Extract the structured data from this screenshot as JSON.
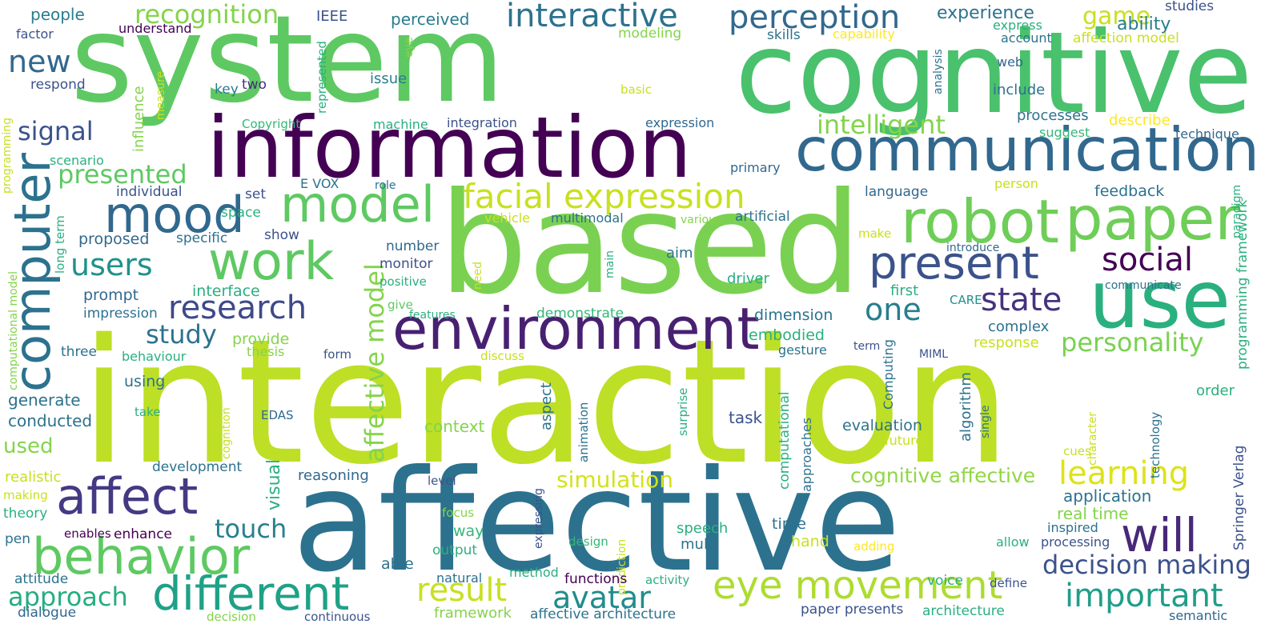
{
  "palette": {
    "dark_purple": "#440154",
    "indigo": "#472d7b",
    "slate_blue": "#3b528b",
    "steel_blue": "#2c728e",
    "teal": "#21918c",
    "sea_green": "#28ae80",
    "green": "#5ec962",
    "light_green": "#84d44b",
    "lime": "#addc30",
    "yellow_green": "#c8e020",
    "yellow": "#fde725"
  },
  "words": [
    {
      "text": "interaction",
      "color": "#bddf26"
    },
    {
      "text": "system",
      "color": "#5ec962"
    },
    {
      "text": "cognitive",
      "color": "#4ac16d"
    },
    {
      "text": "based",
      "color": "#7ad151"
    },
    {
      "text": "affective",
      "color": "#2c728e"
    },
    {
      "text": "information",
      "color": "#440154"
    },
    {
      "text": "communication",
      "color": "#31688e"
    },
    {
      "text": "environment",
      "color": "#482071"
    },
    {
      "text": "robot",
      "color": "#6ece58"
    },
    {
      "text": "paper",
      "color": "#6ece58"
    },
    {
      "text": "use",
      "color": "#2ab07f"
    },
    {
      "text": "computer",
      "color": "#2c728e"
    },
    {
      "text": "model",
      "color": "#5ec962"
    },
    {
      "text": "work",
      "color": "#5ec962"
    },
    {
      "text": "mood",
      "color": "#31688e"
    },
    {
      "text": "behavior",
      "color": "#5ec962"
    },
    {
      "text": "affect",
      "color": "#443a83"
    },
    {
      "text": "different",
      "color": "#1fa187"
    },
    {
      "text": "present",
      "color": "#3b528b"
    },
    {
      "text": "eye movement",
      "color": "#addc30"
    },
    {
      "text": "will",
      "color": "#482878"
    },
    {
      "text": "facial expression",
      "color": "#c8e020"
    },
    {
      "text": "perception",
      "color": "#31688e"
    },
    {
      "text": "interactive",
      "color": "#2c728e"
    },
    {
      "text": "research",
      "color": "#3e4989"
    },
    {
      "text": "social",
      "color": "#440154"
    },
    {
      "text": "state",
      "color": "#46327e"
    },
    {
      "text": "result",
      "color": "#c8e020"
    },
    {
      "text": "avatar",
      "color": "#228c8d"
    },
    {
      "text": "important",
      "color": "#1f9e89"
    },
    {
      "text": "approach",
      "color": "#26ad81"
    },
    {
      "text": "learning",
      "color": "#dde318"
    },
    {
      "text": "personality",
      "color": "#7ad151"
    },
    {
      "text": "intelligent",
      "color": "#84d44b"
    },
    {
      "text": "users",
      "color": "#21918c"
    },
    {
      "text": "new",
      "color": "#31688e"
    },
    {
      "text": "signal",
      "color": "#3b528b"
    },
    {
      "text": "one",
      "color": "#287d8e"
    },
    {
      "text": "study",
      "color": "#2c728e"
    },
    {
      "text": "touch",
      "color": "#27808e"
    },
    {
      "text": "recognition",
      "color": "#84d44b"
    },
    {
      "text": "presented",
      "color": "#5ec962"
    },
    {
      "text": "decision making",
      "color": "#3b528b"
    },
    {
      "text": "affective model",
      "color": "#84d44b"
    },
    {
      "text": "simulation",
      "color": "#d2e21b"
    },
    {
      "text": "cognitive affective",
      "color": "#90d743"
    },
    {
      "text": "game",
      "color": "#c8e020"
    },
    {
      "text": "experience",
      "color": "#2c728e"
    },
    {
      "text": "ability",
      "color": "#287d8e"
    },
    {
      "text": "studies",
      "color": "#3b528b"
    },
    {
      "text": "express",
      "color": "#2ab07f"
    },
    {
      "text": "account",
      "color": "#2c728e"
    },
    {
      "text": "affection model",
      "color": "#c8e020"
    },
    {
      "text": "capability",
      "color": "#fde725"
    },
    {
      "text": "skills",
      "color": "#2c728e"
    },
    {
      "text": "modeling",
      "color": "#84d44b"
    },
    {
      "text": "IEEE",
      "color": "#3b528b"
    },
    {
      "text": "perceived",
      "color": "#287d8e"
    },
    {
      "text": "people",
      "color": "#287d8e"
    },
    {
      "text": "factor",
      "color": "#3b528b"
    },
    {
      "text": "understand",
      "color": "#440154"
    },
    {
      "text": "respond",
      "color": "#3b528b"
    },
    {
      "text": "key",
      "color": "#287d8e"
    },
    {
      "text": "two",
      "color": "#472d7b"
    },
    {
      "text": "issue",
      "color": "#287d8e"
    },
    {
      "text": "basic",
      "color": "#c8e020"
    },
    {
      "text": "web",
      "color": "#31688e"
    },
    {
      "text": "include",
      "color": "#2c728e"
    },
    {
      "text": "processes",
      "color": "#2c728e"
    },
    {
      "text": "describe",
      "color": "#fde725"
    },
    {
      "text": "technique",
      "color": "#31688e"
    },
    {
      "text": "suggest",
      "color": "#35b779"
    },
    {
      "text": "machine",
      "color": "#28ae80"
    },
    {
      "text": "integration",
      "color": "#3b528b"
    },
    {
      "text": "expression",
      "color": "#31688e"
    },
    {
      "text": "Copyright",
      "color": "#35b779"
    },
    {
      "text": "scenario",
      "color": "#2ab07f"
    },
    {
      "text": "programming",
      "color": "#c8e020"
    },
    {
      "text": "influence",
      "color": "#84d44b"
    },
    {
      "text": "measure",
      "color": "#c8e020"
    },
    {
      "text": "represented",
      "color": "#2ab07f"
    },
    {
      "text": "eye",
      "color": "#84d44b"
    },
    {
      "text": "analysis",
      "color": "#2c728e"
    },
    {
      "text": "E VOX",
      "color": "#2c728e"
    },
    {
      "text": "role",
      "color": "#2c728e"
    },
    {
      "text": "primary",
      "color": "#31688e"
    },
    {
      "text": "language",
      "color": "#31688e"
    },
    {
      "text": "person",
      "color": "#c8e020"
    },
    {
      "text": "feedback",
      "color": "#2c728e"
    },
    {
      "text": "individual",
      "color": "#3b528b"
    },
    {
      "text": "set",
      "color": "#3b528b"
    },
    {
      "text": "space",
      "color": "#2ab07f"
    },
    {
      "text": "vehicle",
      "color": "#c8e020"
    },
    {
      "text": "multimodal",
      "color": "#2c728e"
    },
    {
      "text": "various",
      "color": "#84d44b"
    },
    {
      "text": "artificial",
      "color": "#2c728e"
    },
    {
      "text": "paradigm",
      "color": "#2ab07f"
    },
    {
      "text": "programming framework",
      "color": "#2ab07f"
    },
    {
      "text": "long term",
      "color": "#2ab07f"
    },
    {
      "text": "proposed",
      "color": "#31688e"
    },
    {
      "text": "specific",
      "color": "#2c728e"
    },
    {
      "text": "show",
      "color": "#3b528b"
    },
    {
      "text": "make",
      "color": "#c8e020"
    },
    {
      "text": "introduce",
      "color": "#31688e"
    },
    {
      "text": "communicate",
      "color": "#2c728e"
    },
    {
      "text": "computational model",
      "color": "#84d44b"
    },
    {
      "text": "number",
      "color": "#31688e"
    },
    {
      "text": "monitor",
      "color": "#3b528b"
    },
    {
      "text": "positive",
      "color": "#2ab07f"
    },
    {
      "text": "need",
      "color": "#c8e020"
    },
    {
      "text": "main",
      "color": "#2ab07f"
    },
    {
      "text": "aim",
      "color": "#2c728e"
    },
    {
      "text": "driver",
      "color": "#28ae80"
    },
    {
      "text": "first",
      "color": "#2ab07f"
    },
    {
      "text": "CARE",
      "color": "#21918c"
    },
    {
      "text": "prompt",
      "color": "#31688e"
    },
    {
      "text": "interface",
      "color": "#2ab07f"
    },
    {
      "text": "impression",
      "color": "#2c728e"
    },
    {
      "text": "give",
      "color": "#5ec962"
    },
    {
      "text": "features",
      "color": "#2ab07f"
    },
    {
      "text": "demonstrate",
      "color": "#35b779"
    },
    {
      "text": "dimension",
      "color": "#2c728e"
    },
    {
      "text": "embodied",
      "color": "#2ab07f"
    },
    {
      "text": "gesture",
      "color": "#2c728e"
    },
    {
      "text": "complex",
      "color": "#2c728e"
    },
    {
      "text": "response",
      "color": "#c8e020"
    },
    {
      "text": "term",
      "color": "#3b528b"
    },
    {
      "text": "MIML",
      "color": "#3b528b"
    },
    {
      "text": "three",
      "color": "#2c728e"
    },
    {
      "text": "behaviour",
      "color": "#2ab07f"
    },
    {
      "text": "provide",
      "color": "#84d44b"
    },
    {
      "text": "thesis",
      "color": "#84d44b"
    },
    {
      "text": "form",
      "color": "#3b528b"
    },
    {
      "text": "discuss",
      "color": "#c8e020"
    },
    {
      "text": "using",
      "color": "#2c728e"
    },
    {
      "text": "generate",
      "color": "#2c728e"
    },
    {
      "text": "conducted",
      "color": "#2c728e"
    },
    {
      "text": "used",
      "color": "#84d44b"
    },
    {
      "text": "take",
      "color": "#2ab07f"
    },
    {
      "text": "cognition",
      "color": "#c8e020"
    },
    {
      "text": "EDAS",
      "color": "#31688e"
    },
    {
      "text": "visual",
      "color": "#2ab07f"
    },
    {
      "text": "aspect",
      "color": "#2c728e"
    },
    {
      "text": "animation",
      "color": "#2c728e"
    },
    {
      "text": "surprise",
      "color": "#2ab07f"
    },
    {
      "text": "computational",
      "color": "#2ab07f"
    },
    {
      "text": "approaches",
      "color": "#2c728e"
    },
    {
      "text": "Computing",
      "color": "#2c728e"
    },
    {
      "text": "algorithm",
      "color": "#2c728e"
    },
    {
      "text": "single",
      "color": "#2c728e"
    },
    {
      "text": "character",
      "color": "#c8e020"
    },
    {
      "text": "technology",
      "color": "#2c728e"
    },
    {
      "text": "Springer Verlag",
      "color": "#3b528b"
    },
    {
      "text": "order",
      "color": "#2ab07f"
    },
    {
      "text": "task",
      "color": "#3b528b"
    },
    {
      "text": "evaluation",
      "color": "#2c728e"
    },
    {
      "text": "future",
      "color": "#c8e020"
    },
    {
      "text": "cues",
      "color": "#c8e020"
    },
    {
      "text": "context",
      "color": "#84d44b"
    },
    {
      "text": "development",
      "color": "#2c728e"
    },
    {
      "text": "realistic",
      "color": "#c8e020"
    },
    {
      "text": "reasoning",
      "color": "#31688e"
    },
    {
      "text": "making",
      "color": "#c8e020"
    },
    {
      "text": "theory",
      "color": "#2ab07f"
    },
    {
      "text": "level",
      "color": "#3b528b"
    },
    {
      "text": "expressing",
      "color": "#3b528b"
    },
    {
      "text": "focus",
      "color": "#84d44b"
    },
    {
      "text": "application",
      "color": "#2c728e"
    },
    {
      "text": "real time",
      "color": "#84d44b"
    },
    {
      "text": "inspired",
      "color": "#2c728e"
    },
    {
      "text": "processing",
      "color": "#3b528b"
    },
    {
      "text": "enables",
      "color": "#440154"
    },
    {
      "text": "enhance",
      "color": "#440154"
    },
    {
      "text": "pen",
      "color": "#2c728e"
    },
    {
      "text": "way",
      "color": "#35b779"
    },
    {
      "text": "speech",
      "color": "#2ab07f"
    },
    {
      "text": "multi",
      "color": "#2c728e"
    },
    {
      "text": "time",
      "color": "#2c728e"
    },
    {
      "text": "hand",
      "color": "#c8e020"
    },
    {
      "text": "adding",
      "color": "#fde725"
    },
    {
      "text": "allow",
      "color": "#2ab07f"
    },
    {
      "text": "output",
      "color": "#2ab07f"
    },
    {
      "text": "design",
      "color": "#35b779"
    },
    {
      "text": "prediction",
      "color": "#c8e020"
    },
    {
      "text": "able",
      "color": "#2c728e"
    },
    {
      "text": "method",
      "color": "#2ab07f"
    },
    {
      "text": "voice",
      "color": "#2ab07f"
    },
    {
      "text": "define",
      "color": "#3b528b"
    },
    {
      "text": "attitude",
      "color": "#2c728e"
    },
    {
      "text": "natural",
      "color": "#2c728e"
    },
    {
      "text": "functions",
      "color": "#440154"
    },
    {
      "text": "activity",
      "color": "#2ab07f"
    },
    {
      "text": "dialogue",
      "color": "#31688e"
    },
    {
      "text": "decision",
      "color": "#84d44b"
    },
    {
      "text": "continuous",
      "color": "#3b528b"
    },
    {
      "text": "framework",
      "color": "#84d44b"
    },
    {
      "text": "affective architecture",
      "color": "#2c728e"
    },
    {
      "text": "paper presents",
      "color": "#3b528b"
    },
    {
      "text": "architecture",
      "color": "#2ab07f"
    },
    {
      "text": "semantic",
      "color": "#31688e"
    }
  ]
}
